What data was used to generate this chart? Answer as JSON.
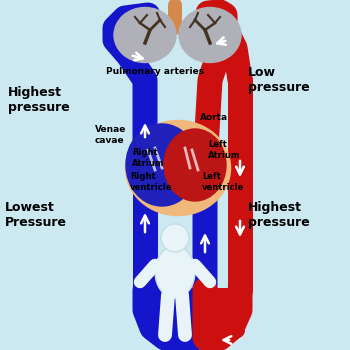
{
  "bg_color": "#cce8f0",
  "blue": "#1515cc",
  "red": "#cc1010",
  "lung_color": "#b0b0b8",
  "lung_dark": "#888890",
  "heart_fill": "#f0b87a",
  "heart_blue": "#2020bb",
  "heart_red": "#bb1515",
  "body_color": "#e8f4f8",
  "body_outline": "#d0e8f0",
  "text_color": "#000000",
  "labels": {
    "top_left": "Highest\npressure",
    "top_right": "Low\npressure",
    "bottom_left": "Lowest\nPressure",
    "bottom_right": "Highest\npressure",
    "pulmonary": "Pulmonary arteries",
    "venae": "Venae\ncavae",
    "aorta": "Aorta",
    "left_atrium": "Left\nAtrium",
    "right_atrium": "Right\nAtrium",
    "right_ventricle": "Right\nventricle",
    "left_ventricle": "Left\nventricle"
  }
}
